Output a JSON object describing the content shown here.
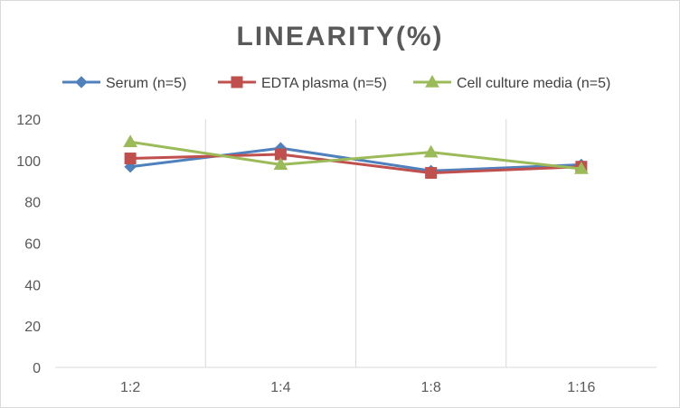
{
  "chart_data": {
    "type": "line",
    "title": "LINEARITY(%)",
    "xlabel": "",
    "ylabel": "",
    "categories": [
      "1:2",
      "1:4",
      "1:8",
      "1:16"
    ],
    "ylim": [
      0,
      120
    ],
    "yticks": [
      0,
      20,
      40,
      60,
      80,
      100,
      120
    ],
    "grid": "vertical",
    "legend_position": "top",
    "series": [
      {
        "name": "Serum (n=5)",
        "values": [
          97,
          106,
          95,
          98
        ],
        "color": "#4F81BD",
        "marker": "diamond"
      },
      {
        "name": "EDTA plasma (n=5)",
        "values": [
          101,
          103,
          94,
          97
        ],
        "color": "#C0504D",
        "marker": "square"
      },
      {
        "name": "Cell culture media (n=5)",
        "values": [
          109,
          98,
          104,
          96
        ],
        "color": "#9BBB59",
        "marker": "triangle"
      }
    ]
  }
}
